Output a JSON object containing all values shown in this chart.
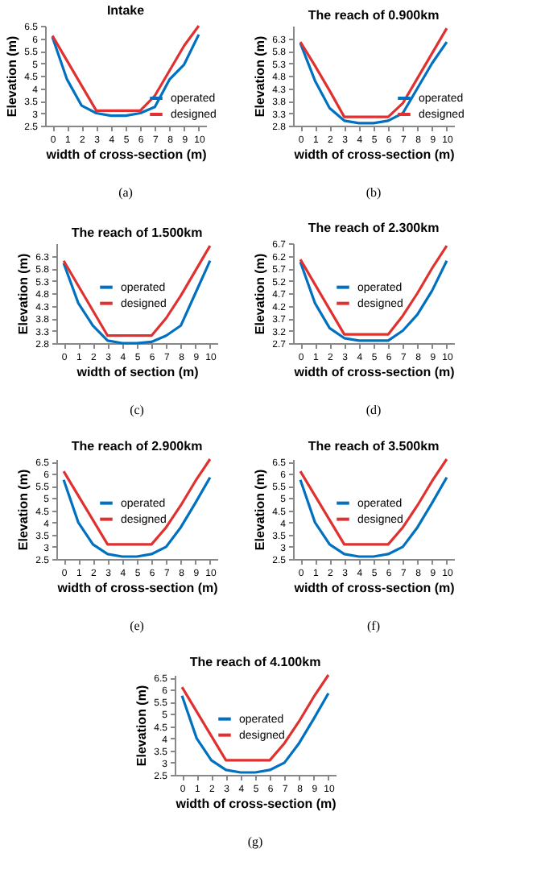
{
  "chart_data": [
    {
      "type": "line",
      "title": "Intake",
      "xlabel": "width of cross-section (m)",
      "ylabel": "Elevation (m)",
      "x": [
        0,
        1,
        2,
        3,
        4,
        5,
        6,
        7,
        8,
        9,
        10
      ],
      "xlim": [
        -0.5,
        10.5
      ],
      "xticks": [
        0,
        1,
        2,
        3,
        4,
        5,
        6,
        7,
        8,
        9,
        10
      ],
      "ylim": [
        2.5,
        6.5
      ],
      "yticks": [
        2.5,
        3,
        3.5,
        4,
        4.5,
        5,
        5.5,
        6,
        6.5
      ],
      "grid": false,
      "legend": "bottom right",
      "annotations": [
        "(a)"
      ],
      "series": [
        {
          "name": "operated",
          "color": "#0070c0",
          "values": [
            6.05,
            4.35,
            3.3,
            3.0,
            2.9,
            2.9,
            3.0,
            3.25,
            4.35,
            4.95,
            6.15
          ]
        },
        {
          "name": "designed",
          "color": "#e03030",
          "values": [
            6.1,
            5.1,
            4.1,
            3.1,
            3.1,
            3.1,
            3.1,
            3.7,
            4.7,
            5.7,
            6.5
          ]
        }
      ]
    },
    {
      "type": "line",
      "title": "The reach of 0.900km",
      "xlabel": "width of cross-section (m)",
      "ylabel": "Elevation (m)",
      "x": [
        0,
        1,
        2,
        3,
        4,
        5,
        6,
        7,
        8,
        9,
        10
      ],
      "xlim": [
        -0.5,
        10.5
      ],
      "xticks": [
        0,
        1,
        2,
        3,
        4,
        5,
        6,
        7,
        8,
        9,
        10
      ],
      "ylim": [
        2.8,
        6.8
      ],
      "yticks": [
        2.8,
        3.3,
        3.8,
        4.3,
        4.8,
        5.3,
        5.8,
        6.3
      ],
      "grid": false,
      "legend": "bottom right",
      "annotations": [
        "(b)"
      ],
      "series": [
        {
          "name": "operated",
          "color": "#0070c0",
          "values": [
            6.1,
            4.6,
            3.5,
            3.0,
            2.9,
            2.9,
            3.0,
            3.3,
            4.3,
            5.3,
            6.15
          ]
        },
        {
          "name": "designed",
          "color": "#e03030",
          "values": [
            6.15,
            5.2,
            4.2,
            3.15,
            3.15,
            3.15,
            3.15,
            3.7,
            4.7,
            5.7,
            6.7
          ]
        }
      ]
    },
    {
      "type": "line",
      "title": "The reach of 1.500km",
      "xlabel": "width of section (m)",
      "ylabel": "Elevation (m)",
      "x": [
        0,
        1,
        2,
        3,
        4,
        5,
        6,
        7,
        8,
        9,
        10
      ],
      "xlim": [
        -0.5,
        10.5
      ],
      "xticks": [
        0,
        1,
        2,
        3,
        4,
        5,
        6,
        7,
        8,
        9,
        10
      ],
      "ylim": [
        2.8,
        6.8
      ],
      "yticks": [
        2.8,
        3.3,
        3.8,
        4.3,
        4.8,
        5.3,
        5.8,
        6.3
      ],
      "grid": false,
      "legend": "center",
      "annotations": [
        "(c)"
      ],
      "series": [
        {
          "name": "operated",
          "color": "#0070c0",
          "values": [
            6.0,
            4.4,
            3.5,
            2.9,
            2.8,
            2.8,
            2.85,
            3.1,
            3.5,
            4.8,
            6.1
          ]
        },
        {
          "name": "designed",
          "color": "#e03030",
          "values": [
            6.1,
            5.1,
            4.1,
            3.1,
            3.1,
            3.1,
            3.1,
            3.8,
            4.7,
            5.7,
            6.7
          ]
        }
      ]
    },
    {
      "type": "line",
      "title": "The reach of 2.300km",
      "xlabel": "width of cross-section (m)",
      "ylabel": "Elevation (m)",
      "x": [
        0,
        1,
        2,
        3,
        4,
        5,
        6,
        7,
        8,
        9,
        10
      ],
      "xlim": [
        -0.5,
        10.5
      ],
      "xticks": [
        0,
        1,
        2,
        3,
        4,
        5,
        6,
        7,
        8,
        9,
        10
      ],
      "ylim": [
        2.7,
        6.7
      ],
      "yticks": [
        2.7,
        3.2,
        3.7,
        4.2,
        4.7,
        5.2,
        5.7,
        6.2,
        6.7
      ],
      "grid": false,
      "legend": "center",
      "annotations": [
        "(d)"
      ],
      "series": [
        {
          "name": "operated",
          "color": "#0070c0",
          "values": [
            5.95,
            4.3,
            3.3,
            2.9,
            2.8,
            2.8,
            2.8,
            3.2,
            3.85,
            4.8,
            6.0
          ]
        },
        {
          "name": "designed",
          "color": "#e03030",
          "values": [
            6.05,
            5.05,
            4.05,
            3.05,
            3.05,
            3.05,
            3.05,
            3.8,
            4.7,
            5.7,
            6.6
          ]
        }
      ]
    },
    {
      "type": "line",
      "title": "The reach of 2.900km",
      "xlabel": "width of cross-section (m)",
      "ylabel": "Elevation (m)",
      "x": [
        0,
        1,
        2,
        3,
        4,
        5,
        6,
        7,
        8,
        9,
        10
      ],
      "xlim": [
        -0.5,
        10.5
      ],
      "xticks": [
        0,
        1,
        2,
        3,
        4,
        5,
        6,
        7,
        8,
        9,
        10
      ],
      "ylim": [
        2.5,
        6.6
      ],
      "yticks": [
        2.5,
        3,
        3.5,
        4,
        4.5,
        5,
        5.5,
        6,
        6.5
      ],
      "grid": false,
      "legend": "center",
      "annotations": [
        "(e)"
      ],
      "series": [
        {
          "name": "operated",
          "color": "#0070c0",
          "values": [
            5.75,
            4.0,
            3.1,
            2.7,
            2.6,
            2.6,
            2.7,
            3.0,
            3.8,
            4.8,
            5.85
          ]
        },
        {
          "name": "designed",
          "color": "#e03030",
          "values": [
            6.1,
            5.1,
            4.1,
            3.1,
            3.1,
            3.1,
            3.1,
            3.8,
            4.7,
            5.7,
            6.6
          ]
        }
      ]
    },
    {
      "type": "line",
      "title": "The reach of 3.500km",
      "xlabel": "width of cross-section (m)",
      "ylabel": "Elevation (m)",
      "x": [
        0,
        1,
        2,
        3,
        4,
        5,
        6,
        7,
        8,
        9,
        10
      ],
      "xlim": [
        -0.5,
        10.5
      ],
      "xticks": [
        0,
        1,
        2,
        3,
        4,
        5,
        6,
        7,
        8,
        9,
        10
      ],
      "ylim": [
        2.5,
        6.6
      ],
      "yticks": [
        2.5,
        3,
        3.5,
        4,
        4.5,
        5,
        5.5,
        6,
        6.5
      ],
      "grid": false,
      "legend": "center",
      "annotations": [
        "(f)"
      ],
      "series": [
        {
          "name": "operated",
          "color": "#0070c0",
          "values": [
            5.75,
            4.0,
            3.1,
            2.7,
            2.6,
            2.6,
            2.7,
            3.0,
            3.8,
            4.8,
            5.85
          ]
        },
        {
          "name": "designed",
          "color": "#e03030",
          "values": [
            6.1,
            5.1,
            4.1,
            3.1,
            3.1,
            3.1,
            3.1,
            3.8,
            4.7,
            5.7,
            6.6
          ]
        }
      ]
    },
    {
      "type": "line",
      "title": "The reach of 4.100km",
      "xlabel": "width of cross-section (m)",
      "ylabel": "Elevation (m)",
      "x": [
        0,
        1,
        2,
        3,
        4,
        5,
        6,
        7,
        8,
        9,
        10
      ],
      "xlim": [
        -0.5,
        10.5
      ],
      "xticks": [
        0,
        1,
        2,
        3,
        4,
        5,
        6,
        7,
        8,
        9,
        10
      ],
      "ylim": [
        2.5,
        6.6
      ],
      "yticks": [
        2.5,
        3,
        3.5,
        4,
        4.5,
        5,
        5.5,
        6,
        6.5
      ],
      "grid": false,
      "legend": "center",
      "annotations": [
        "(g)"
      ],
      "series": [
        {
          "name": "operated",
          "color": "#0070c0",
          "values": [
            5.75,
            4.0,
            3.1,
            2.7,
            2.6,
            2.6,
            2.7,
            3.0,
            3.8,
            4.8,
            5.85
          ]
        },
        {
          "name": "designed",
          "color": "#e03030",
          "values": [
            6.1,
            5.1,
            4.1,
            3.1,
            3.1,
            3.1,
            3.1,
            3.8,
            4.7,
            5.7,
            6.6
          ]
        }
      ]
    }
  ]
}
